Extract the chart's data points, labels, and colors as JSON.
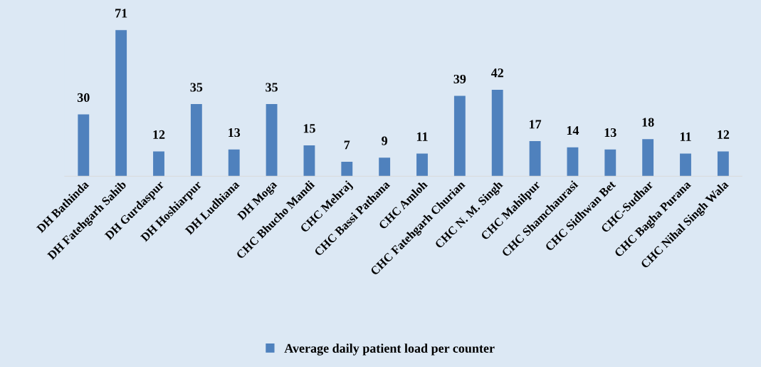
{
  "chart_data": {
    "type": "bar",
    "categories": [
      "DH Bathinda",
      "DH Fatehgarh Sahib",
      "DH Gurdaspur",
      "DH Hoshiarpur",
      "DH Ludhiana",
      "DH Moga",
      "CHC Bhucho Mandi",
      "CHC Mehraj",
      "CHC Bassi Pathana",
      "CHC Amloh",
      "CHC Fatehgarh Churian",
      "CHC N. M. Singh",
      "CHC Mahilpur",
      "CHC Shamchaurasi",
      "CHC Sidhwan Bet",
      "CHC-Sudhar",
      "CHC Bagha Purana",
      "CHC Nihal Singh Wala"
    ],
    "series": [
      {
        "name": "Average daily patient load per counter",
        "color": "#4f81bd",
        "values": [
          30,
          71,
          12,
          35,
          13,
          35,
          15,
          7,
          9,
          11,
          39,
          42,
          17,
          14,
          13,
          18,
          11,
          12
        ]
      }
    ],
    "data_labels": true,
    "legend": "bottom",
    "tick_labels": "x"
  }
}
